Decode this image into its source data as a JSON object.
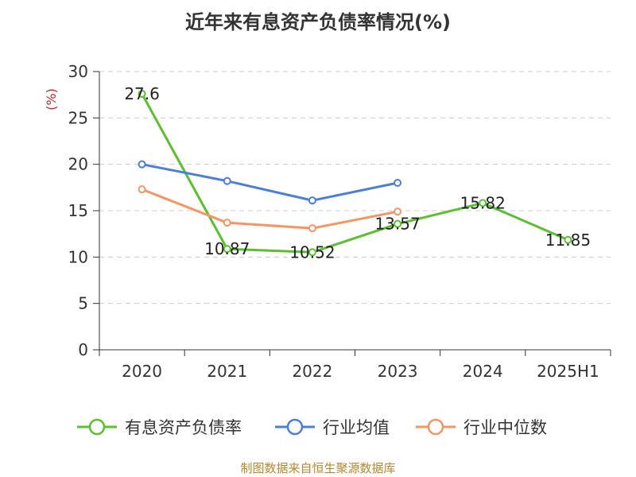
{
  "title": "近年来有息资产负债率情况(%)",
  "source": "制图数据来自恒生聚源数据库",
  "chart_data": {
    "type": "line",
    "title": "近年来有息资产负债率情况(%)",
    "ylabel": "(%)",
    "xlabel": "",
    "categories": [
      "2020",
      "2021",
      "2022",
      "2023",
      "2024",
      "2025H1"
    ],
    "ylim": [
      0,
      30
    ],
    "yticks": [
      0,
      5,
      10,
      15,
      20,
      25,
      30
    ],
    "grid": true,
    "legend_position": "bottom",
    "series": [
      {
        "name": "有息资产负债率",
        "color": "#5ac02e",
        "values": [
          27.6,
          10.87,
          10.52,
          13.57,
          15.82,
          11.85
        ],
        "labels": [
          "27.6",
          "10.87",
          "10.52",
          "13.57",
          "15.82",
          "11.85"
        ]
      },
      {
        "name": "行业均值",
        "color": "#4a7fd9",
        "values": [
          20.0,
          18.2,
          16.1,
          18.0,
          null,
          null
        ],
        "labels": []
      },
      {
        "name": "行业中位数",
        "color": "#f79464",
        "values": [
          17.3,
          13.7,
          13.1,
          14.9,
          null,
          null
        ],
        "labels": []
      }
    ]
  }
}
